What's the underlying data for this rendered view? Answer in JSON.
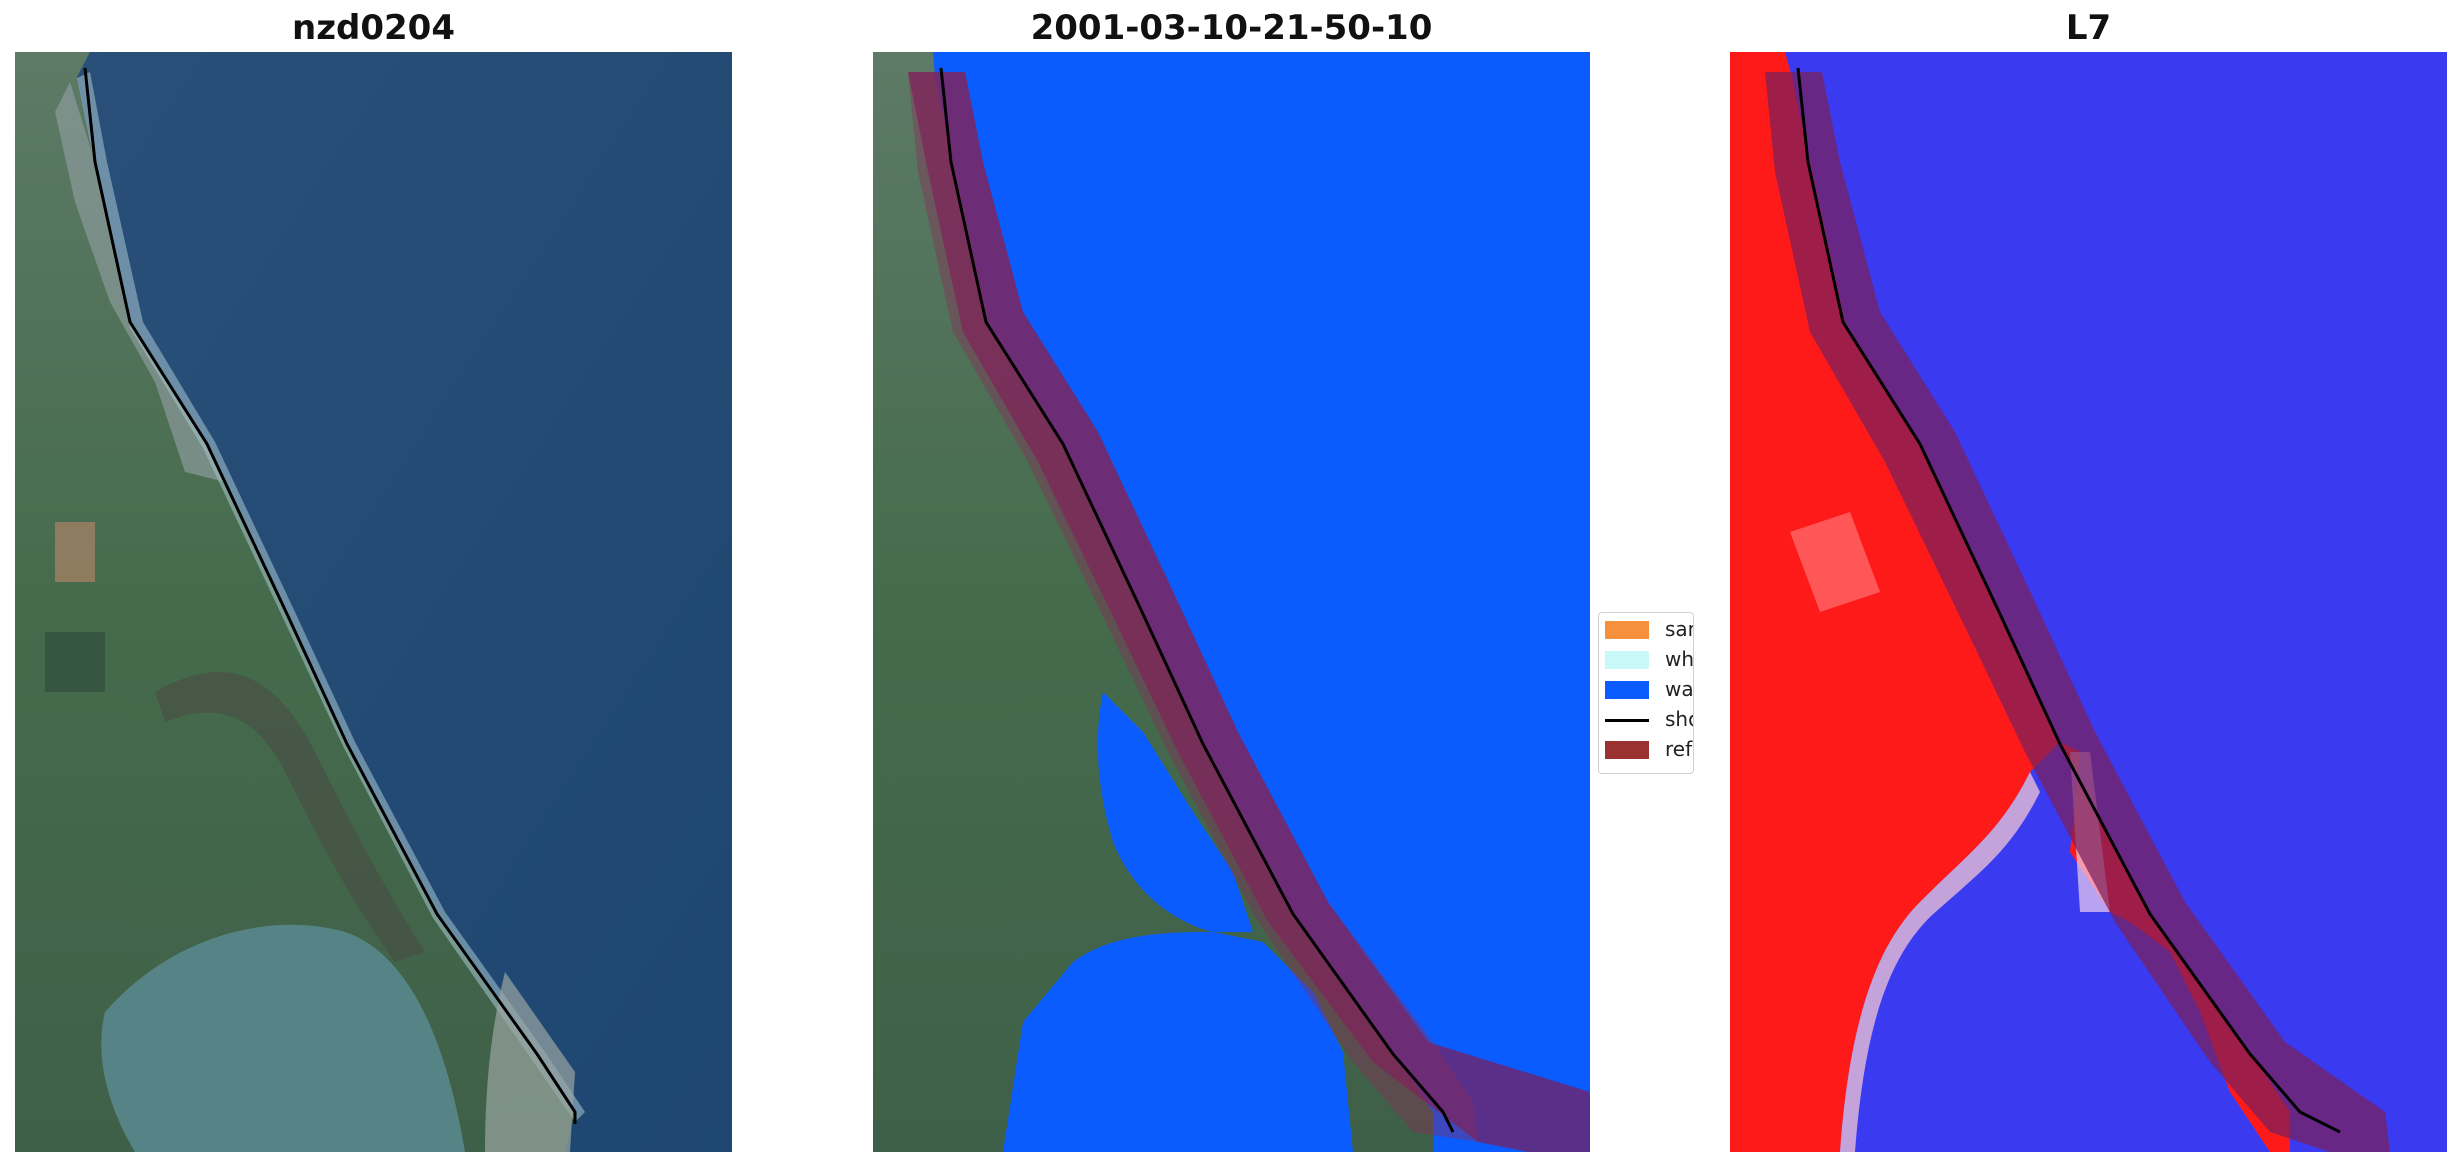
{
  "panels": [
    {
      "title": "nzd0204"
    },
    {
      "title": "2001-03-10-21-50-10"
    },
    {
      "title": "L7"
    }
  ],
  "legend": {
    "items": [
      {
        "label": "sand",
        "color": "#f5913c",
        "kind": "patch"
      },
      {
        "label": "whitewater",
        "color": "#c8f8f8",
        "kind": "patch"
      },
      {
        "label": "water",
        "color": "#0a5cff",
        "kind": "patch"
      },
      {
        "label": "shoreline",
        "color": "#000000",
        "kind": "line"
      },
      {
        "label": "reference shoreline buffer",
        "color": "#9b3232",
        "kind": "patch"
      }
    ]
  },
  "colors": {
    "ocean": "#1f4a73",
    "land": "#4e6b53",
    "water_class": "#0a5cff",
    "buffer": "#7a1f5c",
    "l7_land": "#ff1a1a",
    "l7_water": "#3a3af0"
  }
}
